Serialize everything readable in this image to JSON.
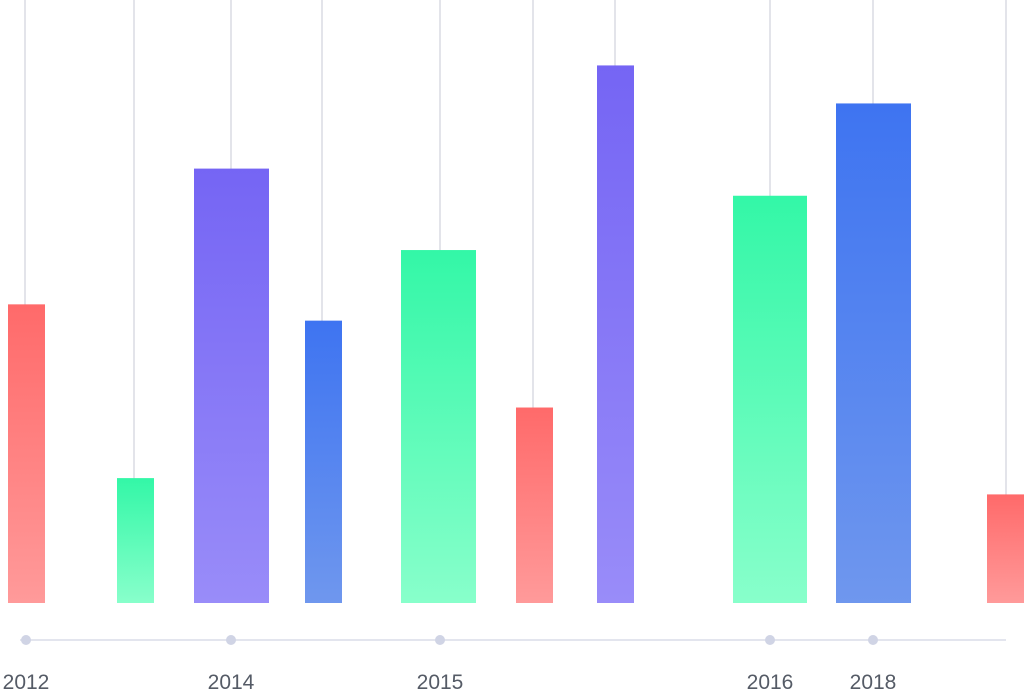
{
  "chart_data": {
    "type": "bar",
    "title": "",
    "xlabel": "",
    "ylabel": "",
    "ylim": [
      0,
      100
    ],
    "grid": false,
    "legend": "none",
    "tick_labels": [
      "2012",
      "2014",
      "2015",
      "2016",
      "2018"
    ],
    "bars": [
      {
        "value": 55,
        "color": "red"
      },
      {
        "value": 23,
        "color": "green"
      },
      {
        "value": 80,
        "color": "purple"
      },
      {
        "value": 52,
        "color": "blue"
      },
      {
        "value": 65,
        "color": "green"
      },
      {
        "value": 36,
        "color": "red"
      },
      {
        "value": 99,
        "color": "purple"
      },
      {
        "value": 75,
        "color": "green"
      },
      {
        "value": 92,
        "color": "blue"
      },
      {
        "value": 20,
        "color": "red"
      }
    ]
  },
  "colors": {
    "red": {
      "top": "#ff6a6a",
      "bottom": "#ff9a9a"
    },
    "green": {
      "top": "#33f7a7",
      "bottom": "#88ffcb"
    },
    "purple": {
      "top": "#7565f4",
      "bottom": "#998cf9"
    },
    "blue": {
      "top": "#3e74f1",
      "bottom": "#6f97ee"
    },
    "gridline": "#e3e4ea",
    "axis": "#e3e5ee",
    "dot": "#d0d4e5",
    "label": "#555b66"
  }
}
